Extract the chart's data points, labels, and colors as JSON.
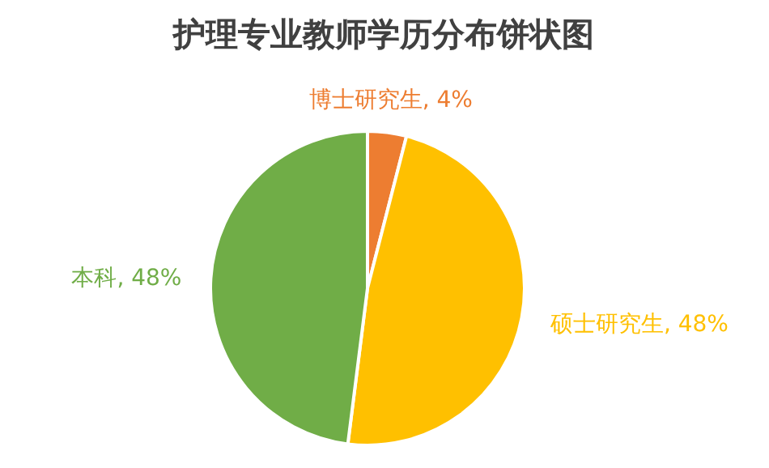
{
  "chart_data": {
    "type": "pie",
    "title": "护理专业教师学历分布饼状图",
    "categories": [
      "博士研究生",
      "硕士研究生",
      "本科"
    ],
    "values": [
      4,
      48,
      48
    ],
    "colors": [
      "#ed7d31",
      "#ffc000",
      "#70ad47"
    ],
    "value_labels": [
      ", 4%",
      ", 48%",
      ", 48%"
    ]
  }
}
